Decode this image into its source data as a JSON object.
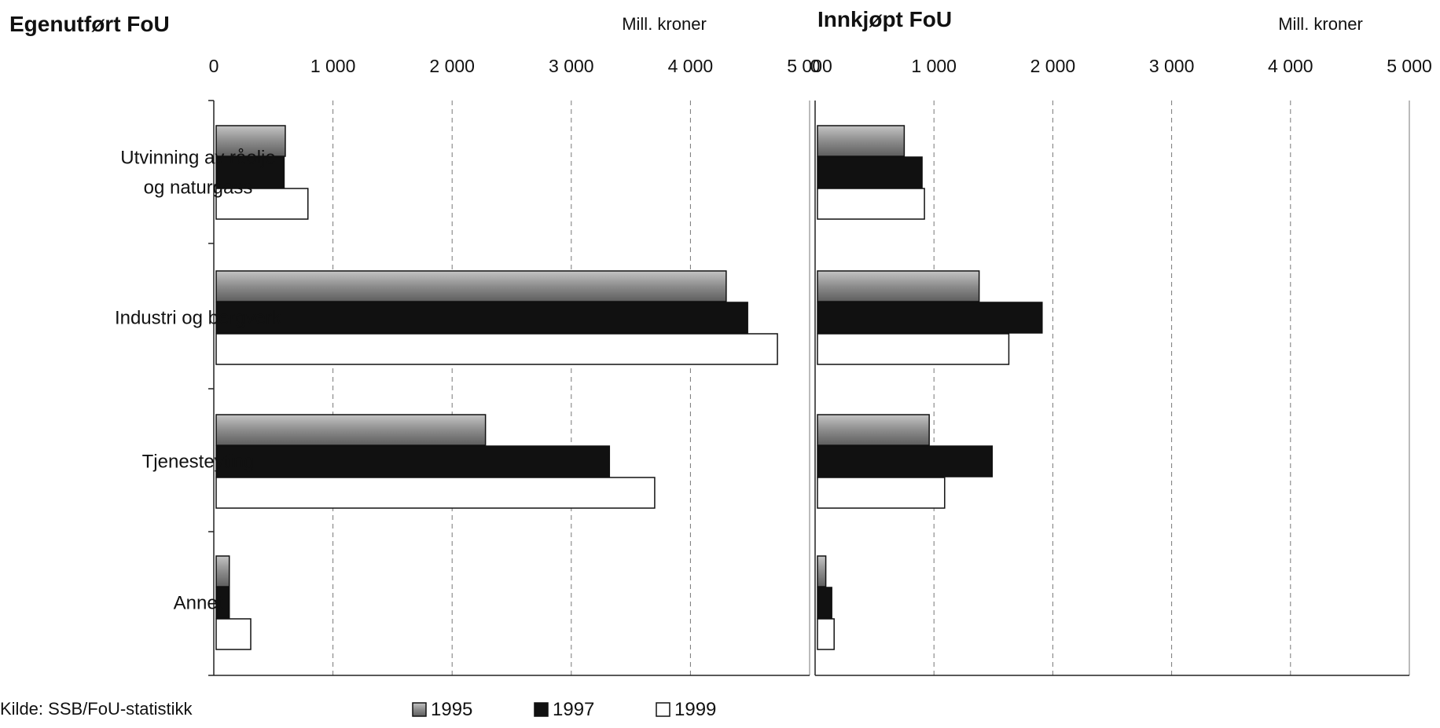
{
  "chart_data": [
    {
      "type": "bar",
      "orientation": "horizontal",
      "title": "Egenutført FoU",
      "unit_label": "Mill. kroner",
      "categories": [
        "Utvinning av råolje og naturgass",
        "Industri og bergverk",
        "Tjenesteyting",
        "Annet"
      ],
      "category_lines": [
        [
          "Utvinning av råolje",
          "og naturgass"
        ],
        [
          "Industri og bergverk"
        ],
        [
          "Tjenesteyting"
        ],
        [
          "Annet"
        ]
      ],
      "series": [
        {
          "name": "1995",
          "values": [
            600,
            4300,
            2280,
            130
          ]
        },
        {
          "name": "1997",
          "values": [
            590,
            4480,
            3320,
            130
          ]
        },
        {
          "name": "1999",
          "values": [
            790,
            4730,
            3700,
            310
          ]
        }
      ],
      "xlim": [
        0,
        5000
      ],
      "ticks": [
        0,
        1000,
        2000,
        3000,
        4000,
        5000
      ],
      "tick_labels": [
        "0",
        "1 000",
        "2 000",
        "3 000",
        "4 000",
        "5 000"
      ],
      "grid": true,
      "legend_position": "bottom"
    },
    {
      "type": "bar",
      "orientation": "horizontal",
      "title": "Innkjøpt FoU",
      "unit_label": "Mill. kroner",
      "categories": [
        "Utvinning av råolje og naturgass",
        "Industri og bergverk",
        "Tjenesteyting",
        "Annet"
      ],
      "series": [
        {
          "name": "1995",
          "values": [
            750,
            1380,
            960,
            90
          ]
        },
        {
          "name": "1997",
          "values": [
            900,
            1910,
            1490,
            140
          ]
        },
        {
          "name": "1999",
          "values": [
            920,
            1630,
            1090,
            160
          ]
        }
      ],
      "xlim": [
        0,
        5000
      ],
      "ticks": [
        0,
        1000,
        2000,
        3000,
        4000,
        5000
      ],
      "tick_labels": [
        "0",
        "1 000",
        "2 000",
        "3 000",
        "4 000",
        "5 000"
      ],
      "grid": true,
      "legend_position": "bottom"
    }
  ],
  "legend": [
    {
      "label": "1995",
      "color": "#8c8c8c"
    },
    {
      "label": "1997",
      "color": "#111111"
    },
    {
      "label": "1999",
      "color": "#ffffff"
    }
  ],
  "source": "Kilde: SSB/FoU-statistikk"
}
